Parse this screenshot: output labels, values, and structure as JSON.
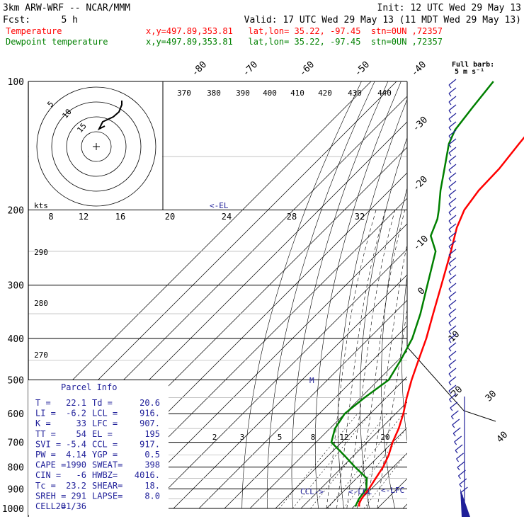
{
  "header": {
    "model": "3km ARW-WRF -- NCAR/MMM",
    "init": "Init: 12 UTC Wed 29 May 13",
    "fcst_label": "Fcst:",
    "fcst_value": "5 h",
    "valid": "Valid: 17 UTC Wed 29 May 13 (11 MDT Wed 29 May 13)",
    "temperature_label": "Temperature",
    "temperature_info": "x,y=497.89,353.81   lat,lon= 35.22, -97.45  stn=0UN ,72357",
    "dewpoint_label": "Dewpoint temperature",
    "dewpoint_info": "x,y=497.89,353.81   lat,lon= 35.22, -97.45  stn=0UN ,72357"
  },
  "colors": {
    "temperature": "#ff0000",
    "dewpoint": "#008000",
    "ccl_text": "#1f1f99"
  },
  "barb_legend": {
    "line1": "Full barb:",
    "line2": "5 m s⁻¹"
  },
  "pressure_levels": [
    "100",
    "200",
    "300",
    "400",
    "500",
    "600",
    "700",
    "800",
    "900",
    "1000"
  ],
  "isotherm_labels": [
    "-80",
    "-70",
    "-60",
    "-50",
    "-40",
    "-30",
    "-20",
    "-10",
    "0",
    "10",
    "20",
    "30",
    "40"
  ],
  "theta_labels": [
    "370",
    "380",
    "390",
    "400",
    "410",
    "420",
    "430",
    "440"
  ],
  "theta_left_labels": [
    "290",
    "280",
    "270"
  ],
  "mixing_ratio_labels": [
    "2",
    "3",
    "5",
    "8",
    "12",
    "20"
  ],
  "hodograph": {
    "unit": "kts",
    "ring_labels": [
      "8",
      "12",
      "16",
      "20",
      "24",
      "28",
      "32"
    ],
    "inner_labels": [
      "5",
      "10",
      "15"
    ]
  },
  "markers": {
    "el": "<-EL",
    "m": "M",
    "ccl": "CCL->",
    "lcl": "<-LCL",
    "lfc": "<-LFC"
  },
  "parcel_info": {
    "title": "Parcel Info",
    "rows": [
      [
        "T  =",
        "22.1",
        "Td =",
        "20.6"
      ],
      [
        "LI =",
        "-6.2",
        "LCL =",
        "916."
      ],
      [
        "K  =",
        "33",
        "LFC =",
        "907."
      ],
      [
        "TT =",
        "54",
        "EL  =",
        "195"
      ],
      [
        "SVI =",
        "-5.4",
        "CCL =",
        "917."
      ],
      [
        "PW =",
        "4.14",
        "YGP =",
        "0.5"
      ],
      [
        "CAPE =",
        "1990",
        "SWEAT=",
        "398"
      ],
      [
        "CIN =",
        "-6",
        "HWBZ=",
        "4016."
      ],
      [
        "Tc =",
        "23.2",
        "SHEAR=",
        "18."
      ],
      [
        "SREH =",
        "291",
        "LAPSE=",
        "8.0"
      ],
      [
        "CELL =",
        "201/36",
        "",
        ""
      ]
    ]
  },
  "chart_data": {
    "type": "line",
    "diagram": "Skew-T log-P",
    "y_unit": "hPa",
    "ylim": [
      1000,
      100
    ],
    "y_ticks": [
      100,
      200,
      300,
      400,
      500,
      600,
      700,
      800,
      900,
      1000
    ],
    "series": [
      {
        "name": "Temperature",
        "color": "#ff0000",
        "points": [
          [
            990,
            22.1
          ],
          [
            975,
            21.0
          ],
          [
            950,
            20.0
          ],
          [
            900,
            19.0
          ],
          [
            850,
            17.5
          ],
          [
            800,
            16.0
          ],
          [
            750,
            13.5
          ],
          [
            700,
            10.0
          ],
          [
            650,
            7.0
          ],
          [
            600,
            3.0
          ],
          [
            550,
            -2.0
          ],
          [
            500,
            -7.0
          ],
          [
            450,
            -12.0
          ],
          [
            400,
            -17.5
          ],
          [
            350,
            -24.5
          ],
          [
            300,
            -32.5
          ],
          [
            250,
            -42.0
          ],
          [
            220,
            -49.0
          ],
          [
            200,
            -53.0
          ],
          [
            180,
            -55.0
          ],
          [
            160,
            -55.5
          ],
          [
            140,
            -57.5
          ],
          [
            120,
            -59.5
          ],
          [
            100,
            -61.5
          ]
        ]
      },
      {
        "name": "Dewpoint temperature",
        "color": "#008000",
        "points": [
          [
            990,
            20.6
          ],
          [
            950,
            19.0
          ],
          [
            900,
            18.0
          ],
          [
            850,
            14.0
          ],
          [
            800,
            5.0
          ],
          [
            750,
            -4.0
          ],
          [
            700,
            -14.0
          ],
          [
            650,
            -18.0
          ],
          [
            600,
            -20.0
          ],
          [
            550,
            -18.5
          ],
          [
            500,
            -16.0
          ],
          [
            450,
            -19.0
          ],
          [
            400,
            -23.0
          ],
          [
            350,
            -29.5
          ],
          [
            300,
            -38.0
          ],
          [
            250,
            -48.0
          ],
          [
            230,
            -56.0
          ],
          [
            210,
            -60.0
          ],
          [
            200,
            -63.0
          ],
          [
            180,
            -70.0
          ],
          [
            160,
            -77.0
          ],
          [
            140,
            -85.0
          ],
          [
            130,
            -88.0
          ],
          [
            115,
            -90.0
          ],
          [
            100,
            -92.0
          ]
        ]
      }
    ]
  }
}
